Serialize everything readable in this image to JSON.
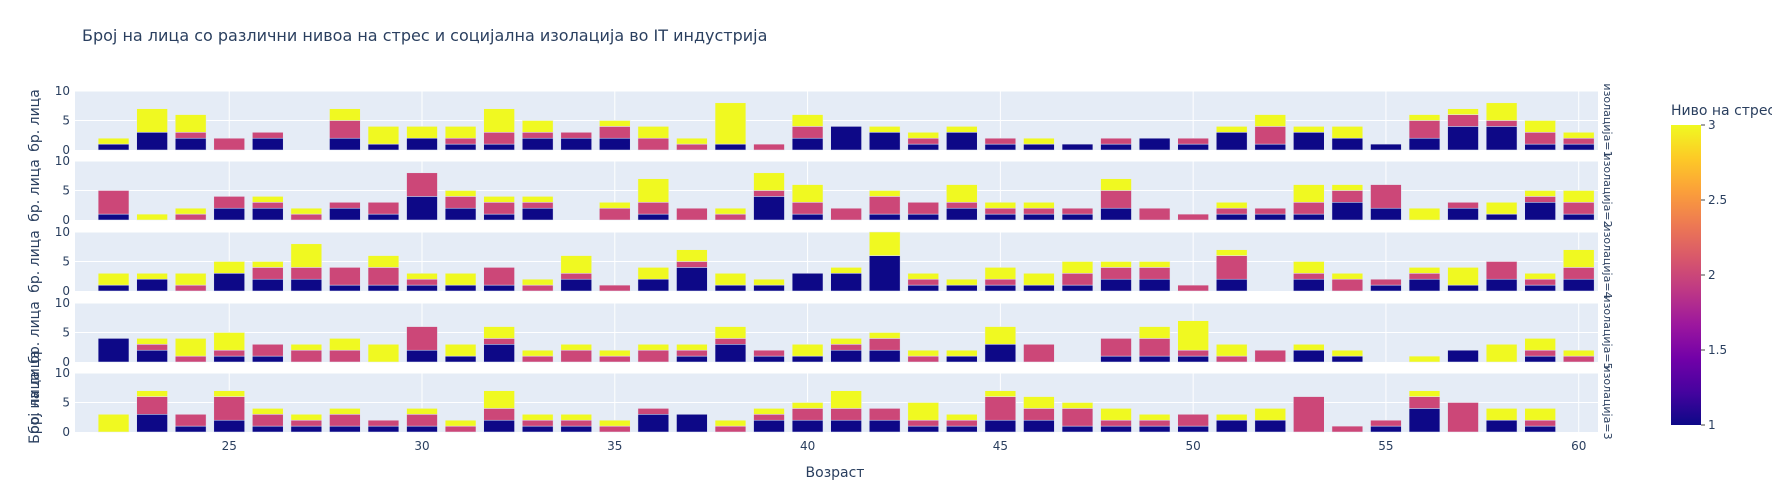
{
  "chart_data": {
    "type": "bar",
    "barmode": "stack",
    "title": "Број на лица со различни нивоа на стрес и социјална изолација во IT индустрија",
    "xlabel": "Возраст",
    "ylabel_facet": "бр. лица",
    "ylabel_shared": "Број на лица",
    "xlim": [
      21,
      60.5
    ],
    "x_ticks": [
      25,
      30,
      35,
      40,
      45,
      50,
      55,
      60
    ],
    "ylim": [
      0,
      10
    ],
    "y_ticks": [
      0,
      5,
      10
    ],
    "grid": true,
    "colorbar": {
      "title": "Ниво на стрес",
      "min": 1,
      "max": 3,
      "ticks": [
        "1",
        "1.5",
        "2",
        "2.5",
        "3"
      ]
    },
    "stack_levels": [
      1,
      2,
      3
    ],
    "colors": {
      "1": "#0d0887",
      "2": "#cc4778",
      "3": "#f0f921"
    },
    "panel_bg": "#e5ecf6",
    "x": [
      22,
      23,
      24,
      25,
      26,
      27,
      28,
      29,
      30,
      31,
      32,
      33,
      34,
      35,
      36,
      37,
      38,
      39,
      40,
      41,
      42,
      43,
      44,
      45,
      46,
      47,
      48,
      49,
      50,
      51,
      52,
      53,
      54,
      55,
      56,
      57,
      58,
      59,
      60
    ],
    "facets": [
      {
        "label": "изолација=1",
        "stacks": [
          [
            1,
            0,
            1
          ],
          [
            3,
            0,
            4
          ],
          [
            2,
            1,
            3
          ],
          [
            0,
            2,
            0
          ],
          [
            2,
            1,
            0
          ],
          [
            0,
            0,
            0
          ],
          [
            2,
            3,
            2
          ],
          [
            1,
            0,
            3
          ],
          [
            2,
            0,
            2
          ],
          [
            1,
            1,
            2
          ],
          [
            1,
            2,
            4
          ],
          [
            2,
            1,
            2
          ],
          [
            2,
            1,
            0
          ],
          [
            2,
            2,
            1
          ],
          [
            0,
            2,
            2
          ],
          [
            0,
            1,
            1
          ],
          [
            1,
            0,
            7
          ],
          [
            0,
            1,
            0
          ],
          [
            2,
            2,
            2
          ],
          [
            4,
            0,
            0
          ],
          [
            3,
            0,
            1
          ],
          [
            1,
            1,
            1
          ],
          [
            3,
            0,
            1
          ],
          [
            1,
            1,
            0
          ],
          [
            1,
            0,
            1
          ],
          [
            1,
            0,
            0
          ],
          [
            1,
            1,
            0
          ],
          [
            2,
            0,
            0
          ],
          [
            1,
            1,
            0
          ],
          [
            3,
            0,
            1
          ],
          [
            1,
            3,
            2
          ],
          [
            3,
            0,
            1
          ],
          [
            2,
            0,
            2
          ],
          [
            1,
            0,
            0
          ],
          [
            2,
            3,
            1
          ],
          [
            4,
            2,
            1
          ],
          [
            4,
            1,
            3
          ],
          [
            1,
            2,
            2
          ],
          [
            1,
            1,
            1
          ]
        ]
      },
      {
        "label": "изолација=2",
        "stacks": [
          [
            1,
            4,
            0
          ],
          [
            0,
            0,
            1
          ],
          [
            0,
            1,
            1
          ],
          [
            2,
            2,
            0
          ],
          [
            2,
            1,
            1
          ],
          [
            0,
            1,
            1
          ],
          [
            2,
            1,
            0
          ],
          [
            1,
            2,
            0
          ],
          [
            4,
            4,
            0
          ],
          [
            2,
            2,
            1
          ],
          [
            1,
            2,
            1
          ],
          [
            2,
            1,
            1
          ],
          [
            0,
            0,
            0
          ],
          [
            0,
            2,
            1
          ],
          [
            1,
            2,
            4
          ],
          [
            0,
            2,
            0
          ],
          [
            0,
            1,
            1
          ],
          [
            4,
            1,
            3
          ],
          [
            1,
            2,
            3
          ],
          [
            0,
            2,
            0
          ],
          [
            1,
            3,
            1
          ],
          [
            1,
            2,
            0
          ],
          [
            2,
            1,
            3
          ],
          [
            1,
            1,
            1
          ],
          [
            1,
            1,
            1
          ],
          [
            1,
            1,
            0
          ],
          [
            2,
            3,
            2
          ],
          [
            0,
            2,
            0
          ],
          [
            0,
            1,
            0
          ],
          [
            1,
            1,
            1
          ],
          [
            1,
            1,
            0
          ],
          [
            1,
            2,
            3
          ],
          [
            3,
            2,
            1
          ],
          [
            2,
            4,
            0
          ],
          [
            0,
            0,
            2
          ],
          [
            2,
            1,
            0
          ],
          [
            1,
            0,
            2
          ],
          [
            3,
            1,
            1
          ],
          [
            1,
            2,
            2
          ]
        ]
      },
      {
        "label": "изолација=4",
        "stacks": [
          [
            1,
            0,
            2
          ],
          [
            2,
            0,
            1
          ],
          [
            0,
            1,
            2
          ],
          [
            3,
            0,
            2
          ],
          [
            2,
            2,
            1
          ],
          [
            2,
            2,
            4
          ],
          [
            1,
            3,
            0
          ],
          [
            1,
            3,
            2
          ],
          [
            1,
            1,
            1
          ],
          [
            1,
            0,
            2
          ],
          [
            1,
            3,
            0
          ],
          [
            0,
            1,
            1
          ],
          [
            2,
            1,
            3
          ],
          [
            0,
            1,
            0
          ],
          [
            2,
            0,
            2
          ],
          [
            4,
            1,
            2
          ],
          [
            1,
            0,
            2
          ],
          [
            1,
            0,
            1
          ],
          [
            3,
            0,
            0
          ],
          [
            3,
            0,
            1
          ],
          [
            6,
            0,
            4
          ],
          [
            1,
            1,
            1
          ],
          [
            1,
            0,
            1
          ],
          [
            1,
            1,
            2
          ],
          [
            1,
            0,
            2
          ],
          [
            1,
            2,
            2
          ],
          [
            2,
            2,
            1
          ],
          [
            2,
            2,
            1
          ],
          [
            0,
            1,
            0
          ],
          [
            2,
            4,
            1
          ],
          [
            0,
            0,
            0
          ],
          [
            2,
            1,
            2
          ],
          [
            0,
            2,
            1
          ],
          [
            1,
            1,
            0
          ],
          [
            2,
            1,
            1
          ],
          [
            1,
            0,
            3
          ],
          [
            2,
            3,
            0
          ],
          [
            1,
            1,
            1
          ],
          [
            2,
            2,
            3
          ]
        ]
      },
      {
        "label": "изолација=5",
        "stacks": [
          [
            4,
            0,
            0
          ],
          [
            2,
            1,
            1
          ],
          [
            0,
            1,
            3
          ],
          [
            1,
            1,
            3
          ],
          [
            1,
            2,
            0
          ],
          [
            0,
            2,
            1
          ],
          [
            0,
            2,
            2
          ],
          [
            0,
            0,
            3
          ],
          [
            2,
            4,
            0
          ],
          [
            1,
            0,
            2
          ],
          [
            3,
            1,
            2
          ],
          [
            0,
            1,
            1
          ],
          [
            0,
            2,
            1
          ],
          [
            0,
            1,
            1
          ],
          [
            0,
            2,
            1
          ],
          [
            1,
            1,
            1
          ],
          [
            3,
            1,
            2
          ],
          [
            1,
            1,
            0
          ],
          [
            1,
            0,
            2
          ],
          [
            2,
            1,
            1
          ],
          [
            2,
            2,
            1
          ],
          [
            0,
            1,
            1
          ],
          [
            1,
            0,
            1
          ],
          [
            3,
            0,
            3
          ],
          [
            0,
            3,
            0
          ],
          [
            0,
            0,
            0
          ],
          [
            1,
            3,
            0
          ],
          [
            1,
            3,
            2
          ],
          [
            1,
            1,
            5
          ],
          [
            0,
            1,
            2
          ],
          [
            0,
            2,
            0
          ],
          [
            2,
            0,
            1
          ],
          [
            1,
            0,
            1
          ],
          [
            0,
            0,
            0
          ],
          [
            0,
            0,
            1
          ],
          [
            2,
            0,
            0
          ],
          [
            0,
            0,
            3
          ],
          [
            1,
            1,
            2
          ],
          [
            0,
            1,
            1
          ]
        ]
      },
      {
        "label": "изолација=3",
        "stacks": [
          [
            0,
            0,
            3
          ],
          [
            3,
            3,
            1
          ],
          [
            1,
            2,
            0
          ],
          [
            2,
            4,
            1
          ],
          [
            1,
            2,
            1
          ],
          [
            1,
            1,
            1
          ],
          [
            1,
            2,
            1
          ],
          [
            1,
            1,
            0
          ],
          [
            1,
            2,
            1
          ],
          [
            0,
            1,
            1
          ],
          [
            2,
            2,
            3
          ],
          [
            1,
            1,
            1
          ],
          [
            1,
            1,
            1
          ],
          [
            0,
            1,
            1
          ],
          [
            3,
            1,
            0
          ],
          [
            3,
            0,
            0
          ],
          [
            0,
            1,
            1
          ],
          [
            2,
            1,
            1
          ],
          [
            2,
            2,
            1
          ],
          [
            2,
            2,
            3
          ],
          [
            2,
            2,
            0
          ],
          [
            1,
            1,
            3
          ],
          [
            1,
            1,
            1
          ],
          [
            2,
            4,
            1
          ],
          [
            2,
            2,
            2
          ],
          [
            1,
            3,
            1
          ],
          [
            1,
            1,
            2
          ],
          [
            1,
            1,
            1
          ],
          [
            1,
            2,
            0
          ],
          [
            2,
            0,
            1
          ],
          [
            2,
            0,
            2
          ],
          [
            0,
            6,
            0
          ],
          [
            0,
            1,
            0
          ],
          [
            1,
            1,
            0
          ],
          [
            4,
            2,
            1
          ],
          [
            0,
            5,
            0
          ],
          [
            2,
            0,
            2
          ],
          [
            1,
            1,
            2
          ],
          [
            0,
            0,
            0
          ]
        ]
      }
    ]
  }
}
